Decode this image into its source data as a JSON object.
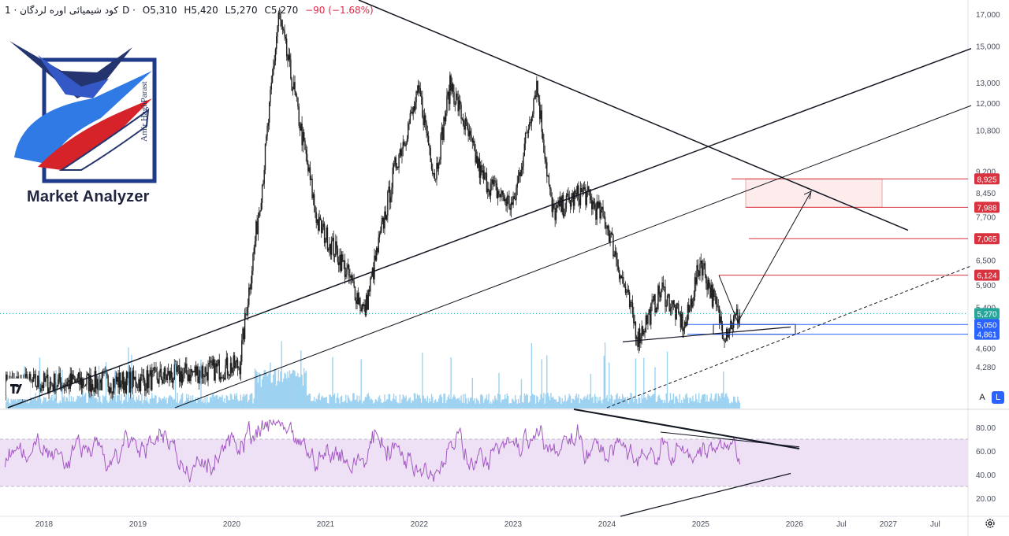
{
  "legend": {
    "symbol": "کود شیمیائی اوره لردگان",
    "interval": "· 1D ·",
    "open": "O5,310",
    "high": "H5,420",
    "low": "L5,270",
    "close": "C5,270",
    "change": "−90 (−1.68%)"
  },
  "logo": {
    "name": "Market Analyzer",
    "author": "Amir HaghParast"
  },
  "scale_buttons": {
    "auto": "A",
    "log": "L"
  },
  "icons": [
    "tradingview-logo-icon",
    "settings-gear-icon"
  ],
  "colors": {
    "candle": "#1e1e1e",
    "volume": "#7ec3ec",
    "rsi_line": "#a259c2",
    "rsi_band": "#efe1f5",
    "target_zone": "#fdeceb",
    "resistance_lines": "#d9313e",
    "support_lines": "#2962ff",
    "last_price": "#26a69a"
  },
  "chart_data": [
    {
      "type": "candlestick",
      "panel": "price",
      "title": "کود شیمیائی اوره لردگان · 1D",
      "scale": "log",
      "ylim": [
        3900,
        17500
      ],
      "y_ticks": [
        "17,000",
        "15,000",
        "13,000",
        "12,000",
        "10,800",
        "9,200",
        "8,450",
        "7,700",
        "6,500",
        "5,900",
        "5,400",
        "4,600",
        "4,280"
      ],
      "x_ticks": [
        "2018",
        "2019",
        "2020",
        "2021",
        "2022",
        "2023",
        "2024",
        "2025",
        "2026",
        "Jul",
        "2027",
        "Jul"
      ],
      "series": [
        {
          "approx_closes": [
            {
              "x": "2017-08",
              "y": 4000
            },
            {
              "x": "2019-01",
              "y": 4050
            },
            {
              "x": "2020-02",
              "y": 4300
            },
            {
              "x": "2020-05",
              "y": 9000
            },
            {
              "x": "2020-07",
              "y": 17000
            },
            {
              "x": "2020-09",
              "y": 12500
            },
            {
              "x": "2020-12",
              "y": 7500
            },
            {
              "x": "2021-03",
              "y": 6500
            },
            {
              "x": "2021-06",
              "y": 5300
            },
            {
              "x": "2021-10",
              "y": 9500
            },
            {
              "x": "2022-01",
              "y": 12500
            },
            {
              "x": "2022-03",
              "y": 9000
            },
            {
              "x": "2022-05",
              "y": 13000
            },
            {
              "x": "2022-09",
              "y": 9000
            },
            {
              "x": "2023-01",
              "y": 8000
            },
            {
              "x": "2023-04",
              "y": 13000
            },
            {
              "x": "2023-06",
              "y": 7800
            },
            {
              "x": "2023-10",
              "y": 8500
            },
            {
              "x": "2024-01",
              "y": 7500
            },
            {
              "x": "2024-05",
              "y": 4800
            },
            {
              "x": "2024-08",
              "y": 5800
            },
            {
              "x": "2024-11",
              "y": 5000
            },
            {
              "x": "2025-01",
              "y": 6500
            },
            {
              "x": "2025-04",
              "y": 4900
            },
            {
              "x": "2025-06",
              "y": 5270
            }
          ]
        }
      ],
      "price_labels": [
        {
          "label": "8,925",
          "color": "#d9313e"
        },
        {
          "label": "7,988",
          "color": "#d9313e"
        },
        {
          "label": "7,065",
          "color": "#d9313e"
        },
        {
          "label": "6,124",
          "color": "#d9313e"
        },
        {
          "label": "5,270",
          "color": "#26a69a"
        },
        {
          "label": "5,050",
          "color": "#2962ff"
        },
        {
          "label": "4,861",
          "color": "#2962ff"
        }
      ],
      "annotations": [
        {
          "kind": "rectangle",
          "y_range": [
            7988,
            8925
          ]
        },
        {
          "kind": "rectangle",
          "y_range": [
            4861,
            5050
          ]
        },
        {
          "kind": "horizontal_line",
          "y": 8925
        },
        {
          "kind": "horizontal_line",
          "y": 7988
        },
        {
          "kind": "horizontal_line",
          "y": 7065
        },
        {
          "kind": "horizontal_line",
          "y": 6124
        },
        {
          "kind": "horizontal_line",
          "y": 5050
        },
        {
          "kind": "horizontal_line",
          "y": 4861
        },
        {
          "kind": "trendline",
          "name": "descending resistance"
        },
        {
          "kind": "trendline",
          "name": "ascending channel upper"
        },
        {
          "kind": "trendline",
          "name": "ascending channel lower"
        },
        {
          "kind": "trendline",
          "name": "dashed support",
          "style": "dashed"
        },
        {
          "kind": "path",
          "name": "projected move to target zone"
        }
      ]
    },
    {
      "type": "line",
      "panel": "rsi",
      "ylim": [
        10,
        90
      ],
      "y_ticks": [
        "80.00",
        "60.00",
        "40.00",
        "20.00"
      ],
      "band": [
        30,
        70
      ],
      "grid": true,
      "annotations": [
        {
          "kind": "trendline",
          "name": "RSI upper diverging line"
        },
        {
          "kind": "trendline",
          "name": "RSI lower converging line"
        }
      ]
    }
  ]
}
